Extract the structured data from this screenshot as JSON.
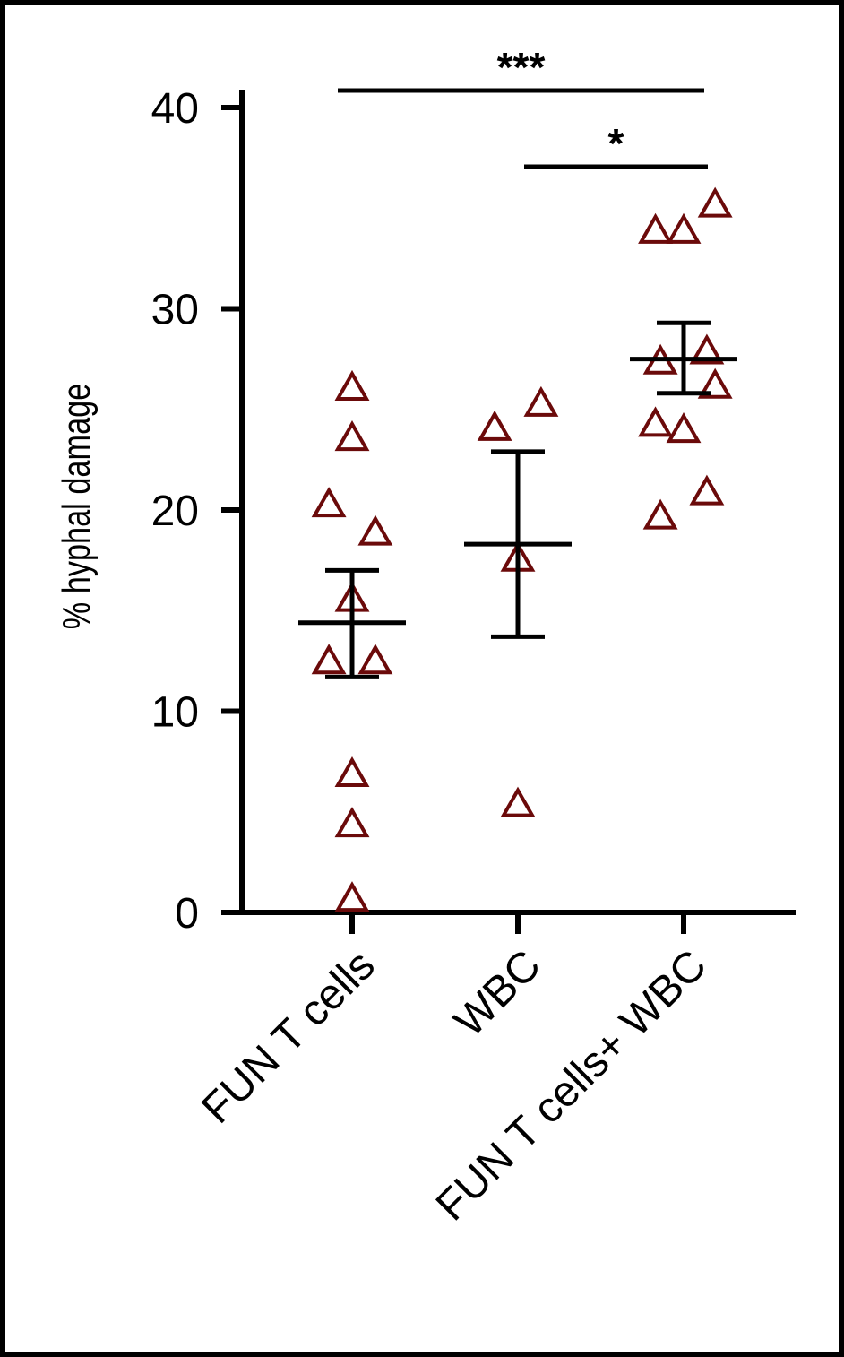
{
  "chart_data": {
    "type": "scatter",
    "title": "",
    "xlabel": "",
    "ylabel": "% hyphal damage",
    "ylim": [
      0,
      40
    ],
    "yticks": [
      0,
      10,
      20,
      30,
      40
    ],
    "categories": [
      "FUN T cells",
      "WBC",
      "FUN T cells+ WBC"
    ],
    "marker": "open-triangle",
    "marker_color": "#6b0a0a",
    "groups": [
      {
        "category": "FUN T cells",
        "points": [
          {
            "jitter": 0.0,
            "y": 26.0
          },
          {
            "jitter": 0.0,
            "y": 23.5
          },
          {
            "jitter": -0.14,
            "y": 20.2
          },
          {
            "jitter": 0.14,
            "y": 18.8
          },
          {
            "jitter": 0.0,
            "y": 15.5
          },
          {
            "jitter": -0.14,
            "y": 12.4
          },
          {
            "jitter": 0.14,
            "y": 12.4
          },
          {
            "jitter": 0.0,
            "y": 6.8
          },
          {
            "jitter": 0.0,
            "y": 4.3
          },
          {
            "jitter": 0.0,
            "y": 0.6
          }
        ],
        "mean": 14.4,
        "sem": [
          11.7,
          17.0
        ]
      },
      {
        "category": "WBC",
        "points": [
          {
            "jitter": -0.14,
            "y": 24.0
          },
          {
            "jitter": 0.14,
            "y": 25.2
          },
          {
            "jitter": 0.0,
            "y": 17.5
          },
          {
            "jitter": 0.0,
            "y": 5.3
          }
        ],
        "mean": 18.3,
        "sem": [
          13.7,
          22.9
        ]
      },
      {
        "category": "FUN T cells+ WBC",
        "points": [
          {
            "jitter": -0.17,
            "y": 33.8
          },
          {
            "jitter": 0.0,
            "y": 33.8
          },
          {
            "jitter": 0.19,
            "y": 35.1
          },
          {
            "jitter": -0.14,
            "y": 27.3
          },
          {
            "jitter": 0.14,
            "y": 27.8
          },
          {
            "jitter": 0.19,
            "y": 26.1
          },
          {
            "jitter": -0.17,
            "y": 24.2
          },
          {
            "jitter": 0.0,
            "y": 23.9
          },
          {
            "jitter": -0.14,
            "y": 19.6
          },
          {
            "jitter": 0.14,
            "y": 20.8
          }
        ],
        "mean": 27.5,
        "sem": [
          25.8,
          29.3
        ]
      }
    ],
    "significance": [
      {
        "from": "FUN T cells",
        "to": "FUN T cells+ WBC",
        "label": "***"
      },
      {
        "from": "WBC",
        "to": "FUN T cells+ WBC",
        "label": "*"
      }
    ],
    "grid": false,
    "legend": "none"
  }
}
